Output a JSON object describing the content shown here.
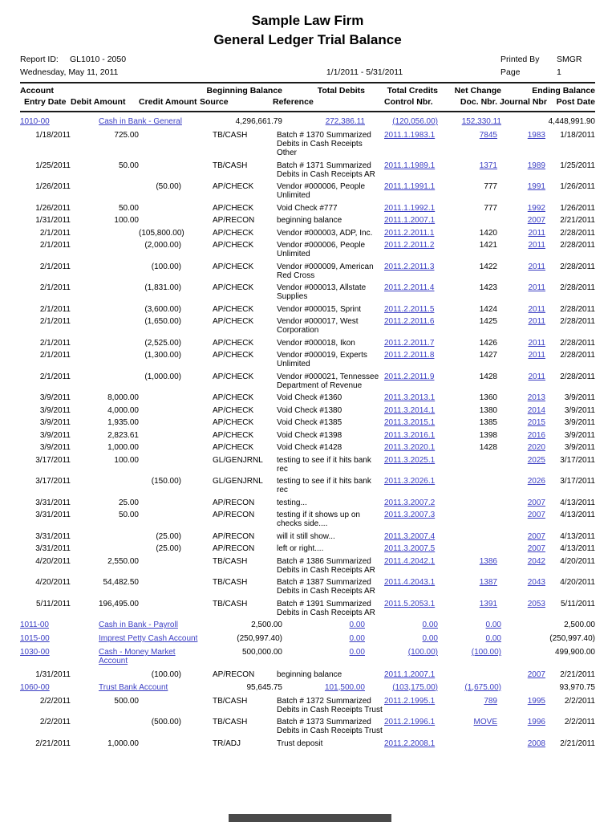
{
  "page": {
    "title_line1": "Sample Law Firm",
    "title_line2": "General Ledger Trial Balance",
    "report_id_label": "Report ID:",
    "report_id_value": "GL1010 - 2050",
    "print_date": "Wednesday, May 11, 2011",
    "date_range": "1/1/2011 - 5/31/2011",
    "printed_by_label": "Printed By",
    "printed_by_value": "SMGR",
    "page_label": "Page",
    "page_number": "1"
  },
  "colors": {
    "link": "#3b3ec3",
    "text": "#000000",
    "rule": "#1a1a1a",
    "page_break_bar": "#4a4a4a"
  },
  "headers": {
    "account": "Account",
    "beginning_balance": "Beginning Balance",
    "total_debits": "Total Debits",
    "total_credits": "Total Credits",
    "net_change": "Net Change",
    "ending_balance": "Ending Balance",
    "entry_date": "Entry Date",
    "debit_amount": "Debit Amount",
    "credit_amount": "Credit Amount",
    "source": "Source",
    "reference": "Reference",
    "control_nbr": "Control Nbr.",
    "doc_nbr": "Doc. Nbr.",
    "journal_nbr": "Journal Nbr",
    "post_date": "Post Date"
  },
  "accounts": [
    {
      "number": "1010-00",
      "name": "Cash in Bank - General",
      "beginning": "4,296,661.79",
      "debits": "272,386.11",
      "credits": "(120,056.00)",
      "net": "152,330.11",
      "ending": "4,448,991.90",
      "entries": [
        {
          "date": "1/18/2011",
          "debit": "725.00",
          "credit": "",
          "source": "TB/CASH",
          "reference": "Batch # 1370 Summarized Debits in Cash Receipts Other",
          "control": "2011.1.1983.1",
          "doc": "7845",
          "doc_link": true,
          "journal": "1983",
          "post": "1/18/2011"
        },
        {
          "date": "1/25/2011",
          "debit": "50.00",
          "credit": "",
          "source": "TB/CASH",
          "reference": "Batch # 1371 Summarized Debits in Cash Receipts AR",
          "control": "2011.1.1989.1",
          "doc": "1371",
          "doc_link": true,
          "journal": "1989",
          "post": "1/25/2011"
        },
        {
          "date": "1/26/2011",
          "debit": "",
          "credit": "(50.00)",
          "source": "AP/CHECK",
          "reference": "Vendor #000006, People Unlimited",
          "control": "2011.1.1991.1",
          "doc": "777",
          "doc_link": false,
          "journal": "1991",
          "post": "1/26/2011"
        },
        {
          "date": "1/26/2011",
          "debit": "50.00",
          "credit": "",
          "source": "AP/CHECK",
          "reference": "Void Check #777",
          "control": "2011.1.1992.1",
          "doc": "777",
          "doc_link": false,
          "journal": "1992",
          "post": "1/26/2011"
        },
        {
          "date": "1/31/2011",
          "debit": "100.00",
          "credit": "",
          "source": "AP/RECON",
          "reference": "beginning balance",
          "control": "2011.1.2007.1",
          "doc": "",
          "doc_link": false,
          "journal": "2007",
          "post": "2/21/2011"
        },
        {
          "date": "2/1/2011",
          "debit": "",
          "credit": "(105,800.00)",
          "source": "AP/CHECK",
          "reference": "Vendor #000003, ADP, Inc.",
          "control": "2011.2.2011.1",
          "doc": "1420",
          "doc_link": false,
          "journal": "2011",
          "post": "2/28/2011"
        },
        {
          "date": "2/1/2011",
          "debit": "",
          "credit": "(2,000.00)",
          "source": "AP/CHECK",
          "reference": "Vendor #000006, People Unlimited",
          "control": "2011.2.2011.2",
          "doc": "1421",
          "doc_link": false,
          "journal": "2011",
          "post": "2/28/2011"
        },
        {
          "date": "2/1/2011",
          "debit": "",
          "credit": "(100.00)",
          "source": "AP/CHECK",
          "reference": "Vendor #000009, American Red Cross",
          "control": "2011.2.2011.3",
          "doc": "1422",
          "doc_link": false,
          "journal": "2011",
          "post": "2/28/2011"
        },
        {
          "date": "2/1/2011",
          "debit": "",
          "credit": "(1,831.00)",
          "source": "AP/CHECK",
          "reference": "Vendor #000013, Allstate Supplies",
          "control": "2011.2.2011.4",
          "doc": "1423",
          "doc_link": false,
          "journal": "2011",
          "post": "2/28/2011"
        },
        {
          "date": "2/1/2011",
          "debit": "",
          "credit": "(3,600.00)",
          "source": "AP/CHECK",
          "reference": "Vendor #000015, Sprint",
          "control": "2011.2.2011.5",
          "doc": "1424",
          "doc_link": false,
          "journal": "2011",
          "post": "2/28/2011"
        },
        {
          "date": "2/1/2011",
          "debit": "",
          "credit": "(1,650.00)",
          "source": "AP/CHECK",
          "reference": "Vendor #000017, West Corporation",
          "control": "2011.2.2011.6",
          "doc": "1425",
          "doc_link": false,
          "journal": "2011",
          "post": "2/28/2011"
        },
        {
          "date": "2/1/2011",
          "debit": "",
          "credit": "(2,525.00)",
          "source": "AP/CHECK",
          "reference": "Vendor #000018, Ikon",
          "control": "2011.2.2011.7",
          "doc": "1426",
          "doc_link": false,
          "journal": "2011",
          "post": "2/28/2011"
        },
        {
          "date": "2/1/2011",
          "debit": "",
          "credit": "(1,300.00)",
          "source": "AP/CHECK",
          "reference": "Vendor #000019, Experts Unlimited",
          "control": "2011.2.2011.8",
          "doc": "1427",
          "doc_link": false,
          "journal": "2011",
          "post": "2/28/2011"
        },
        {
          "date": "2/1/2011",
          "debit": "",
          "credit": "(1,000.00)",
          "source": "AP/CHECK",
          "reference": "Vendor #000021, Tennessee Department of Revenue",
          "control": "2011.2.2011.9",
          "doc": "1428",
          "doc_link": false,
          "journal": "2011",
          "post": "2/28/2011"
        },
        {
          "date": "3/9/2011",
          "debit": "8,000.00",
          "credit": "",
          "source": "AP/CHECK",
          "reference": "Void Check #1360",
          "control": "2011.3.2013.1",
          "doc": "1360",
          "doc_link": false,
          "journal": "2013",
          "post": "3/9/2011"
        },
        {
          "date": "3/9/2011",
          "debit": "4,000.00",
          "credit": "",
          "source": "AP/CHECK",
          "reference": "Void Check #1380",
          "control": "2011.3.2014.1",
          "doc": "1380",
          "doc_link": false,
          "journal": "2014",
          "post": "3/9/2011"
        },
        {
          "date": "3/9/2011",
          "debit": "1,935.00",
          "credit": "",
          "source": "AP/CHECK",
          "reference": "Void Check #1385",
          "control": "2011.3.2015.1",
          "doc": "1385",
          "doc_link": false,
          "journal": "2015",
          "post": "3/9/2011"
        },
        {
          "date": "3/9/2011",
          "debit": "2,823.61",
          "credit": "",
          "source": "AP/CHECK",
          "reference": "Void Check #1398",
          "control": "2011.3.2016.1",
          "doc": "1398",
          "doc_link": false,
          "journal": "2016",
          "post": "3/9/2011"
        },
        {
          "date": "3/9/2011",
          "debit": "1,000.00",
          "credit": "",
          "source": "AP/CHECK",
          "reference": "Void Check #1428",
          "control": "2011.3.2020.1",
          "doc": "1428",
          "doc_link": false,
          "journal": "2020",
          "post": "3/9/2011"
        },
        {
          "date": "3/17/2011",
          "debit": "100.00",
          "credit": "",
          "source": "GL/GENJRNL",
          "reference": "testing to see if it hits bank rec",
          "control": "2011.3.2025.1",
          "doc": "",
          "doc_link": false,
          "journal": "2025",
          "post": "3/17/2011"
        },
        {
          "date": "3/17/2011",
          "debit": "",
          "credit": "(150.00)",
          "source": "GL/GENJRNL",
          "reference": "testing to see if it hits bank rec",
          "control": "2011.3.2026.1",
          "doc": "",
          "doc_link": false,
          "journal": "2026",
          "post": "3/17/2011"
        },
        {
          "date": "3/31/2011",
          "debit": "25.00",
          "credit": "",
          "source": "AP/RECON",
          "reference": "testing...",
          "control": "2011.3.2007.2",
          "doc": "",
          "doc_link": false,
          "journal": "2007",
          "post": "4/13/2011"
        },
        {
          "date": "3/31/2011",
          "debit": "50.00",
          "credit": "",
          "source": "AP/RECON",
          "reference": "testing if it shows up on checks side....",
          "control": "2011.3.2007.3",
          "doc": "",
          "doc_link": false,
          "journal": "2007",
          "post": "4/13/2011"
        },
        {
          "date": "3/31/2011",
          "debit": "",
          "credit": "(25.00)",
          "source": "AP/RECON",
          "reference": "will it still show...",
          "control": "2011.3.2007.4",
          "doc": "",
          "doc_link": false,
          "journal": "2007",
          "post": "4/13/2011"
        },
        {
          "date": "3/31/2011",
          "debit": "",
          "credit": "(25.00)",
          "source": "AP/RECON",
          "reference": "left or right....",
          "control": "2011.3.2007.5",
          "doc": "",
          "doc_link": false,
          "journal": "2007",
          "post": "4/13/2011"
        },
        {
          "date": "4/20/2011",
          "debit": "2,550.00",
          "credit": "",
          "source": "TB/CASH",
          "reference": "Batch # 1386 Summarized Debits in Cash Receipts AR",
          "control": "2011.4.2042.1",
          "doc": "1386",
          "doc_link": true,
          "journal": "2042",
          "post": "4/20/2011"
        },
        {
          "date": "4/20/2011",
          "debit": "54,482.50",
          "credit": "",
          "source": "TB/CASH",
          "reference": "Batch # 1387 Summarized Debits in Cash Receipts AR",
          "control": "2011.4.2043.1",
          "doc": "1387",
          "doc_link": true,
          "journal": "2043",
          "post": "4/20/2011"
        },
        {
          "date": "5/11/2011",
          "debit": "196,495.00",
          "credit": "",
          "source": "TB/CASH",
          "reference": "Batch # 1391 Summarized Debits in Cash Receipts AR",
          "control": "2011.5.2053.1",
          "doc": "1391",
          "doc_link": true,
          "journal": "2053",
          "post": "5/11/2011"
        }
      ]
    },
    {
      "number": "1011-00",
      "name": "Cash in Bank - Payroll",
      "beginning": "2,500.00",
      "debits": "0.00",
      "credits": "0.00",
      "net": "0.00",
      "ending": "2,500.00",
      "entries": []
    },
    {
      "number": "1015-00",
      "name": "Imprest Petty Cash Account",
      "beginning": "(250,997.40)",
      "debits": "0.00",
      "credits": "0.00",
      "net": "0.00",
      "ending": "(250,997.40)",
      "entries": []
    },
    {
      "number": "1030-00",
      "name": "Cash - Money Market Account",
      "beginning": "500,000.00",
      "debits": "0.00",
      "credits": "(100.00)",
      "net": "(100.00)",
      "ending": "499,900.00",
      "entries": [
        {
          "date": "1/31/2011",
          "debit": "",
          "credit": "(100.00)",
          "source": "AP/RECON",
          "reference": "beginning balance",
          "control": "2011.1.2007.1",
          "doc": "",
          "doc_link": false,
          "journal": "2007",
          "post": "2/21/2011"
        }
      ]
    },
    {
      "number": "1060-00",
      "name": "Trust Bank Account",
      "beginning": "95,645.75",
      "debits": "101,500.00",
      "credits": "(103,175.00)",
      "net": "(1,675.00)",
      "ending": "93,970.75",
      "entries": [
        {
          "date": "2/2/2011",
          "debit": "500.00",
          "credit": "",
          "source": "TB/CASH",
          "reference": "Batch # 1372 Summarized Debits in Cash Receipts Trust",
          "control": "2011.2.1995.1",
          "doc": "789",
          "doc_link": true,
          "journal": "1995",
          "post": "2/2/2011"
        },
        {
          "date": "2/2/2011",
          "debit": "",
          "credit": "(500.00)",
          "source": "TB/CASH",
          "reference": "Batch # 1373 Summarized Debits in Cash Receipts Trust",
          "control": "2011.2.1996.1",
          "doc": "MOVE",
          "doc_link": true,
          "journal": "1996",
          "post": "2/2/2011"
        },
        {
          "date": "2/21/2011",
          "debit": "1,000.00",
          "credit": "",
          "source": "TR/ADJ",
          "reference": "Trust deposit",
          "control": "2011.2.2008.1",
          "doc": "",
          "doc_link": false,
          "journal": "2008",
          "post": "2/21/2011"
        }
      ]
    }
  ]
}
